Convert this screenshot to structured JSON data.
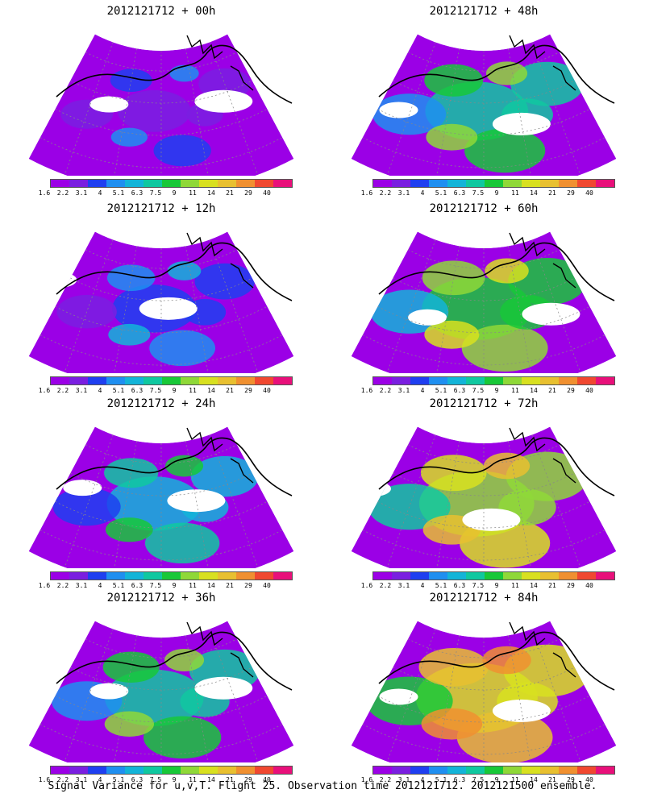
{
  "panels": [
    {
      "title": "2012121712 + 00h",
      "intensity": 0.08,
      "peak": "red"
    },
    {
      "title": "2012121712 + 48h",
      "intensity": 0.52,
      "peak": "orange"
    },
    {
      "title": "2012121712 + 12h",
      "intensity": 0.24,
      "peak": "green"
    },
    {
      "title": "2012121712 + 60h",
      "intensity": 0.62,
      "peak": "orange"
    },
    {
      "title": "2012121712 + 24h",
      "intensity": 0.4,
      "peak": "yellow"
    },
    {
      "title": "2012121712 + 72h",
      "intensity": 0.7,
      "peak": "orange"
    },
    {
      "title": "2012121712 + 36h",
      "intensity": 0.46,
      "peak": "yellow"
    },
    {
      "title": "2012121712 + 84h",
      "intensity": 0.8,
      "peak": "red"
    }
  ],
  "colorbar": {
    "labels": [
      "1.6",
      "2.2",
      "3.1",
      "4",
      "5.1",
      "6.3",
      "7.5",
      "9",
      "11",
      "14",
      "21",
      "29",
      "40"
    ],
    "colors": [
      "#9b00e6",
      "#7a1fe0",
      "#1f3ff0",
      "#1f8ff0",
      "#13b4d8",
      "#10c8a0",
      "#18c838",
      "#8fd838",
      "#d8e020",
      "#e8c030",
      "#f09030",
      "#f04830",
      "#e8107a"
    ]
  },
  "footer": "Signal Variance for u,v,T. Flight 25. Observation time 2012121712. 2012121500 ensemble."
}
